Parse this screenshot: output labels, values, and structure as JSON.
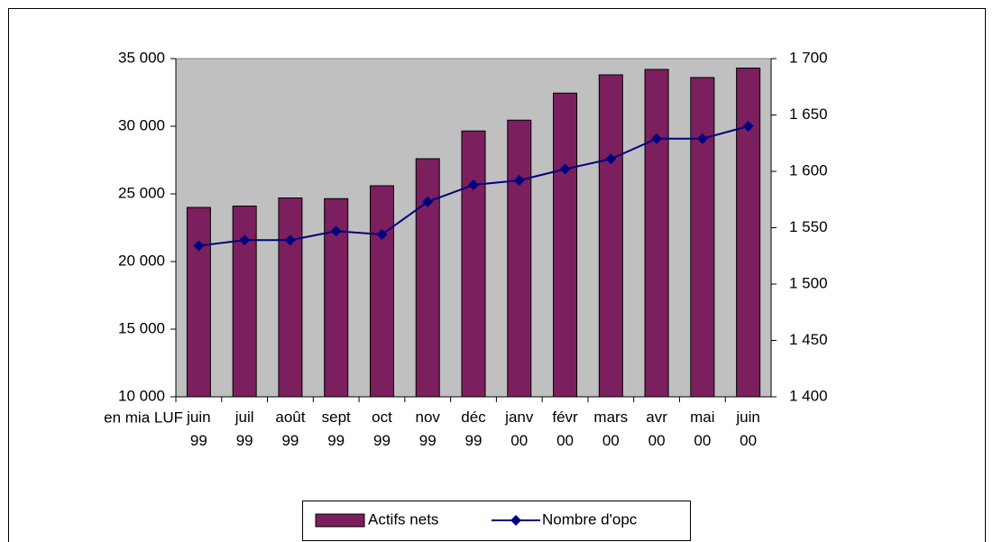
{
  "chart_data": {
    "type": "bar-line",
    "annotation": "en mia LUF",
    "categories": [
      "juin 99",
      "juil 99",
      "août 99",
      "sept 99",
      "oct 99",
      "nov 99",
      "déc 99",
      "janv 00",
      "févr 00",
      "mars 00",
      "avr 00",
      "mai 00",
      "juin 00"
    ],
    "series": [
      {
        "name": "Actifs nets",
        "type": "bar",
        "color": "#7b1f5e",
        "values": [
          24000,
          24100,
          24700,
          24650,
          25600,
          27600,
          29650,
          30450,
          32450,
          33800,
          34200,
          33600,
          34300
        ]
      },
      {
        "name": "Nombre d'opc",
        "type": "line",
        "axis": "y2",
        "color": "#000080",
        "values": [
          1534,
          1539,
          1539,
          1547,
          1544,
          1573,
          1588,
          1592,
          1602,
          1611,
          1629,
          1629,
          1640
        ]
      }
    ],
    "ylim": [
      10000,
      35000
    ],
    "yticks": [
      {
        "value": 10000,
        "label": "10 000"
      },
      {
        "value": 15000,
        "label": "15 000"
      },
      {
        "value": 20000,
        "label": "20 000"
      },
      {
        "value": 25000,
        "label": "25 000"
      },
      {
        "value": 30000,
        "label": "30 000"
      },
      {
        "value": 35000,
        "label": "35 000"
      }
    ],
    "y2lim": [
      1400,
      1700
    ],
    "y2ticks": [
      {
        "value": 1400,
        "label": "1 400"
      },
      {
        "value": 1450,
        "label": "1 450"
      },
      {
        "value": 1500,
        "label": "1 500"
      },
      {
        "value": 1550,
        "label": "1 550"
      },
      {
        "value": 1600,
        "label": "1 600"
      },
      {
        "value": 1650,
        "label": "1 650"
      },
      {
        "value": 1700,
        "label": "1 700"
      }
    ],
    "plot_background": "#c0c0c0",
    "grid": false,
    "legend": "bottom"
  }
}
